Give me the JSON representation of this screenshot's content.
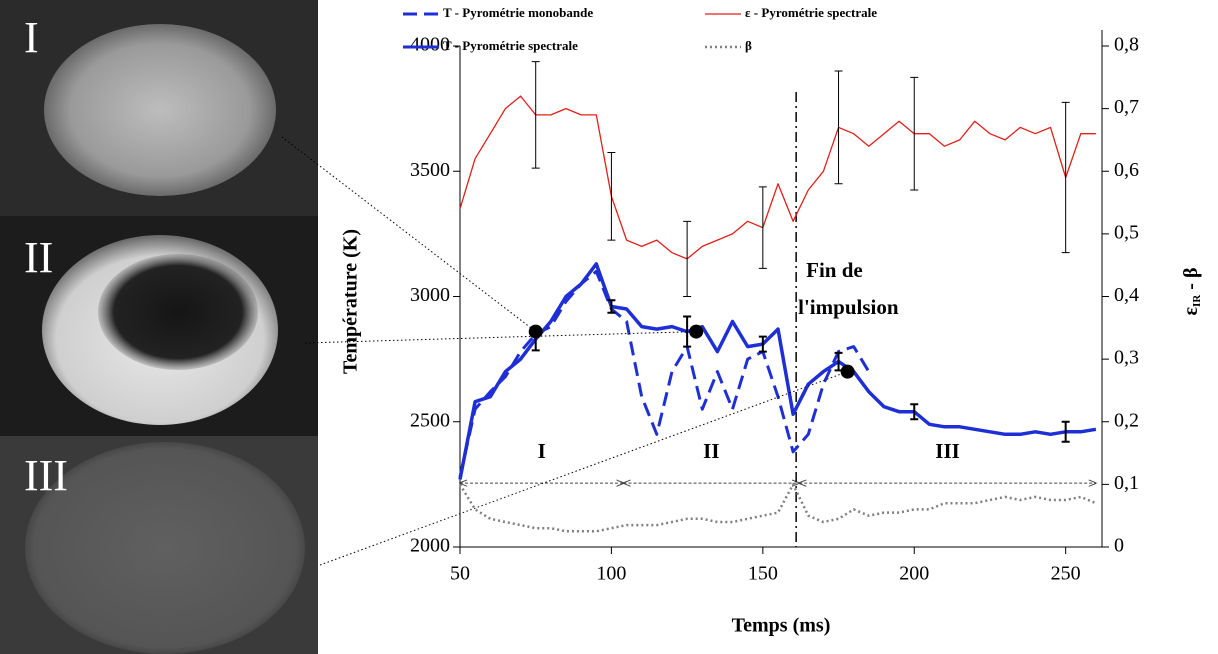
{
  "chart_data": {
    "type": "line",
    "xlabel": "Temps (ms)",
    "ylabel": "Température (K)",
    "y2label": "ε",
    "y2label_sub": "IR",
    "y2label_suffix": " - β",
    "xlim": [
      50,
      262
    ],
    "xticks": [
      50,
      100,
      150,
      200,
      250
    ],
    "ylim": [
      2000,
      4000
    ],
    "yticks": [
      2000,
      2500,
      3000,
      3500,
      4000
    ],
    "y2lim": [
      0,
      0.8
    ],
    "y2ticks": [
      0,
      {
        "value": 0.1,
        "label": "0,1"
      },
      {
        "value": 0.2,
        "label": "0,2"
      },
      {
        "value": 0.3,
        "label": "0,3"
      },
      {
        "value": 0.4,
        "label": "0,4"
      },
      {
        "value": 0.5,
        "label": "0,5"
      },
      {
        "value": 0.6,
        "label": "0,6"
      },
      {
        "value": 0.7,
        "label": "0,7"
      },
      {
        "value": 0.8,
        "label": "0,8"
      }
    ],
    "legend_position": "top",
    "x": [
      50,
      55,
      60,
      65,
      70,
      75,
      80,
      85,
      90,
      95,
      100,
      105,
      110,
      115,
      120,
      125,
      130,
      135,
      140,
      145,
      150,
      155,
      160,
      165,
      170,
      175,
      180,
      185,
      190,
      195,
      200,
      205,
      210,
      215,
      220,
      225,
      230,
      235,
      240,
      245,
      250,
      255,
      260
    ],
    "series": [
      {
        "name": "T - Pyrométrie monobande",
        "color": "#1f2fd6",
        "line_style": "dashed",
        "width": 3,
        "values": [
          2280,
          2550,
          2620,
          2680,
          2780,
          2850,
          2880,
          2980,
          3050,
          3100,
          2950,
          2900,
          2600,
          2450,
          2700,
          2800,
          2550,
          2700,
          2550,
          2750,
          2780,
          2600,
          2380,
          2450,
          2650,
          2780,
          2800,
          2700,
          null,
          null,
          null,
          null,
          null,
          null,
          null,
          null,
          null,
          null,
          null,
          null,
          null,
          null,
          null
        ]
      },
      {
        "name": "T - Pyrométrie spectrale",
        "color": "#1f2fd6",
        "line_style": "solid",
        "width": 3.5,
        "values": [
          2270,
          2580,
          2600,
          2700,
          2750,
          2830,
          2900,
          3000,
          3050,
          3130,
          2960,
          2950,
          2880,
          2870,
          2880,
          2860,
          2880,
          2780,
          2900,
          2800,
          2810,
          2870,
          2530,
          2650,
          2700,
          2740,
          2700,
          2620,
          2560,
          2540,
          2540,
          2490,
          2480,
          2480,
          2470,
          2460,
          2450,
          2450,
          2460,
          2450,
          2460,
          2460,
          2470
        ],
        "errors": [
          null,
          null,
          null,
          null,
          null,
          45,
          null,
          null,
          null,
          null,
          25,
          null,
          null,
          null,
          null,
          60,
          null,
          null,
          null,
          null,
          30,
          null,
          null,
          null,
          null,
          35,
          null,
          null,
          null,
          null,
          30,
          null,
          null,
          null,
          null,
          null,
          null,
          null,
          null,
          null,
          40,
          null,
          null
        ]
      },
      {
        "name": "ε - Pyrométrie spectrale",
        "color": "#e0201b",
        "line_style": "solid",
        "width": 1.3,
        "axis": "y2",
        "values": [
          0.54,
          0.62,
          0.66,
          0.7,
          0.72,
          0.69,
          0.69,
          0.7,
          0.69,
          0.69,
          0.56,
          0.49,
          0.48,
          0.49,
          0.47,
          0.46,
          0.48,
          0.49,
          0.5,
          0.52,
          0.51,
          0.58,
          0.52,
          0.57,
          0.6,
          0.67,
          0.66,
          0.64,
          0.66,
          0.68,
          0.66,
          0.66,
          0.64,
          0.65,
          0.68,
          0.66,
          0.65,
          0.67,
          0.66,
          0.67,
          0.59,
          0.66,
          0.66
        ],
        "errors": [
          null,
          null,
          null,
          null,
          null,
          0.085,
          null,
          null,
          null,
          null,
          0.07,
          null,
          null,
          null,
          null,
          0.06,
          null,
          null,
          null,
          null,
          0.065,
          null,
          null,
          null,
          null,
          0.09,
          null,
          null,
          null,
          null,
          0.09,
          null,
          null,
          null,
          null,
          null,
          null,
          null,
          null,
          null,
          0.12,
          null,
          null
        ]
      },
      {
        "name": "β",
        "color": "#7f7f7f",
        "line_style": "dotted",
        "width": 2.5,
        "axis": "y2",
        "values": [
          0.1,
          0.06,
          0.045,
          0.04,
          0.035,
          0.03,
          0.03,
          0.025,
          0.025,
          0.025,
          0.03,
          0.035,
          0.035,
          0.035,
          0.04,
          0.045,
          0.045,
          0.04,
          0.04,
          0.045,
          0.05,
          0.055,
          0.1,
          0.05,
          0.04,
          0.045,
          0.06,
          0.05,
          0.055,
          0.055,
          0.06,
          0.06,
          0.07,
          0.07,
          0.07,
          0.075,
          0.08,
          0.075,
          0.08,
          0.075,
          0.075,
          0.08,
          0.07
        ]
      }
    ],
    "markers": {
      "x": [
        75,
        128,
        178
      ],
      "values": [
        2860,
        2860,
        2700
      ]
    },
    "event_x": 161,
    "annotation_lines": [
      "Fin de",
      "l'impulsion"
    ],
    "phase_y": 2255,
    "phases": [
      {
        "label": "I",
        "start": 50,
        "end": 104
      },
      {
        "label": "II",
        "start": 104,
        "end": 162
      },
      {
        "label": "III",
        "start": 162,
        "end": 260
      }
    ],
    "image_labels": [
      "I",
      "II",
      "III"
    ]
  }
}
